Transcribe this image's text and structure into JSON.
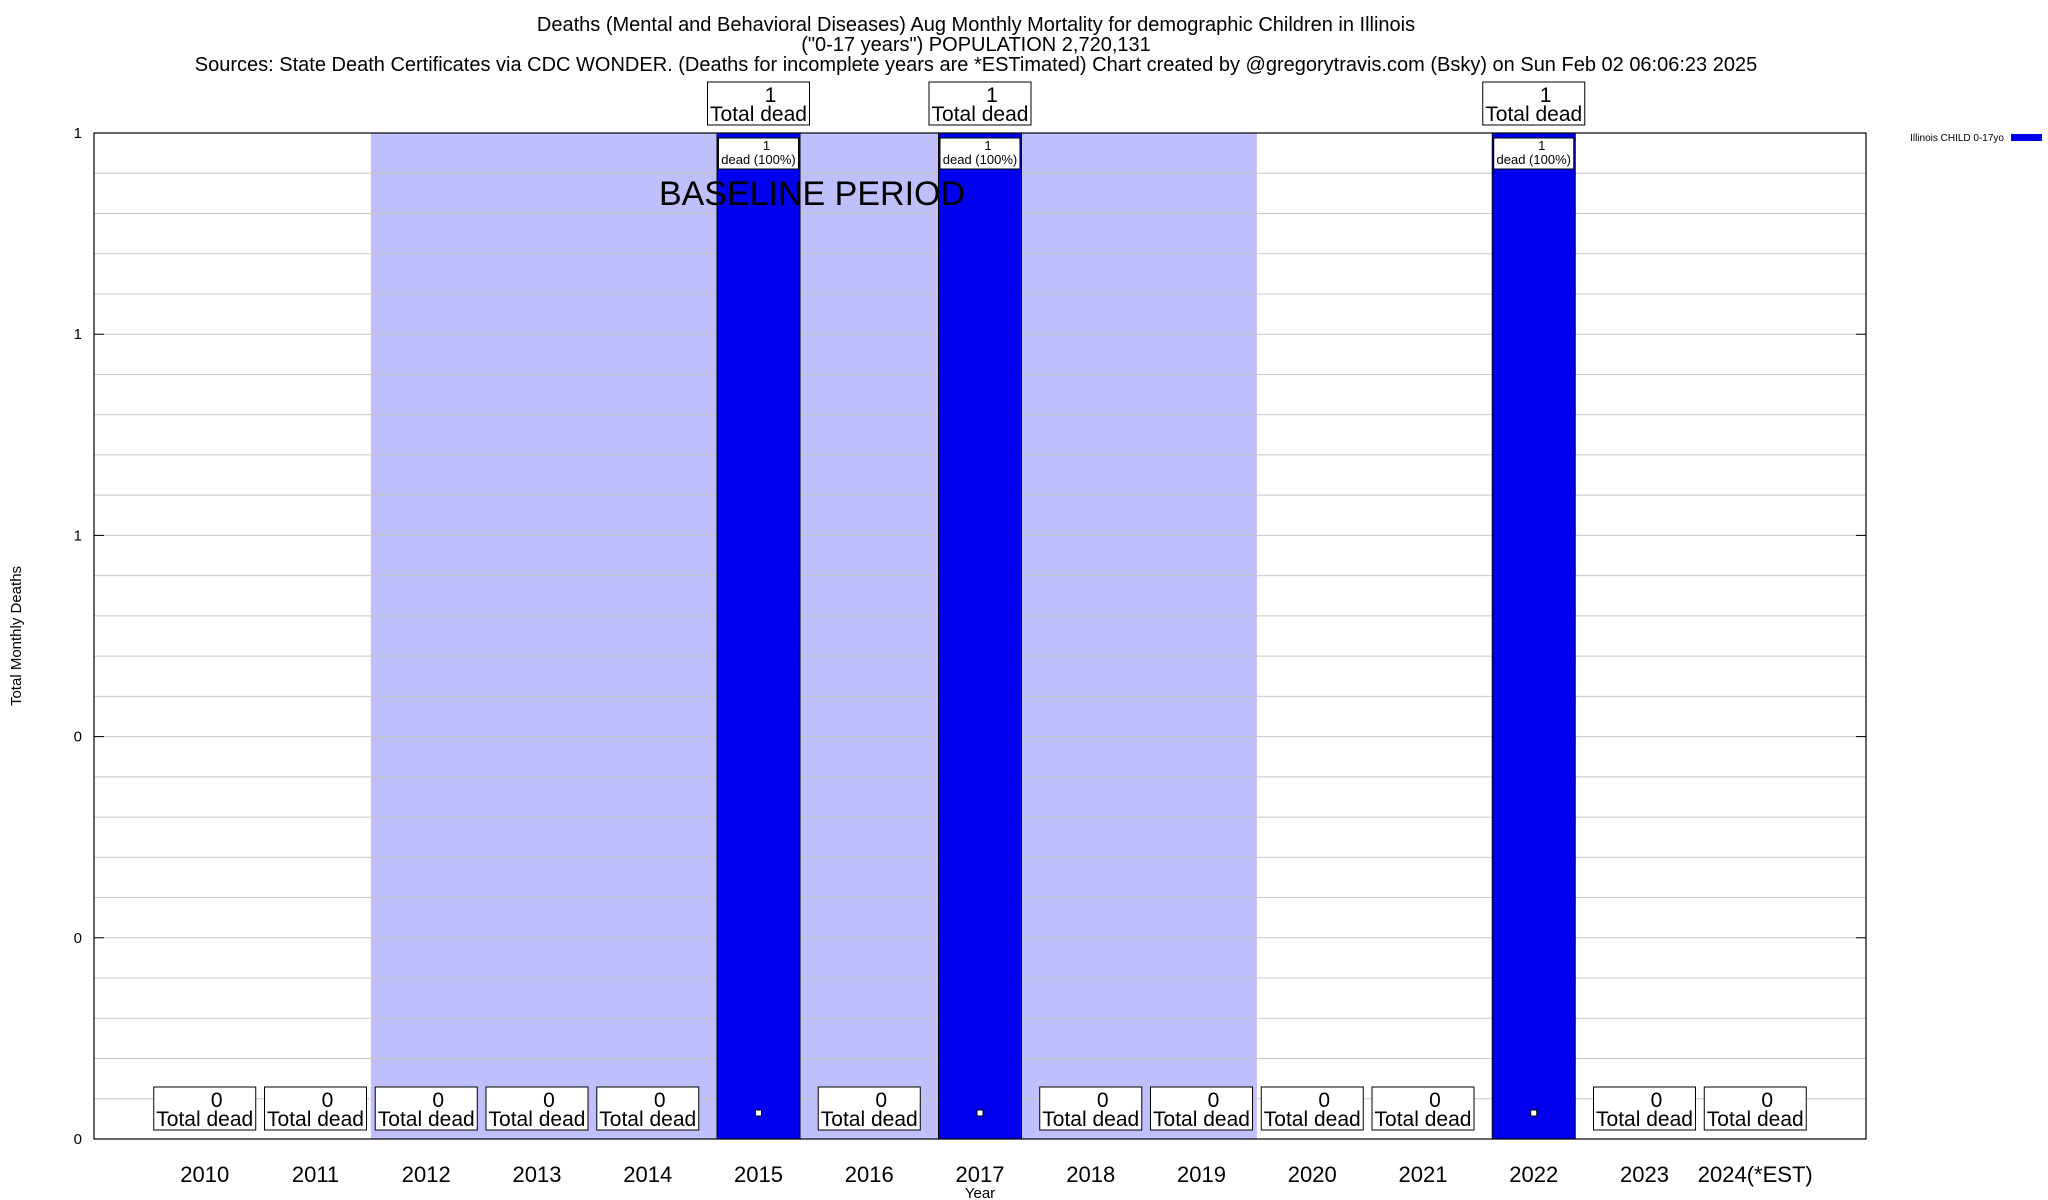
{
  "chart_data": {
    "type": "bar",
    "title_lines": [
      "Deaths (Mental and Behavioral Diseases) Aug Monthly Mortality for demographic Children in Illinois",
      "(\"0-17 years\") POPULATION 2,720,131",
      "Sources: State Death Certificates via CDC WONDER. (Deaths for incomplete years are *ESTimated)              Chart created by @gregorytravis.com (Bsky) on Sun Feb 02 06:06:23 2025"
    ],
    "xlabel": "Year",
    "ylabel": "Total Monthly Deaths",
    "categories": [
      "2010",
      "2011",
      "2012",
      "2013",
      "2014",
      "2015",
      "2016",
      "2017",
      "2018",
      "2019",
      "2020",
      "2021",
      "2022",
      "2023",
      "2024(*EST)"
    ],
    "series": [
      {
        "name": "Illinois CHILD 0-17yo",
        "color": "#0000ee",
        "values": [
          0,
          0,
          0,
          0,
          0,
          1,
          0,
          1,
          0,
          0,
          0,
          0,
          1,
          0,
          0
        ]
      }
    ],
    "total_label_text": "Total dead",
    "bar_label_suffix": "dead (100%)",
    "ylim": [
      0,
      1
    ],
    "y_tick_labels": [
      "0",
      "0",
      "0",
      "1",
      "1",
      "1"
    ],
    "baseline_period": {
      "label": "BASELINE PERIOD",
      "from": "2012",
      "to": "2019",
      "color": "#bfbffb"
    },
    "grid": true,
    "legend_position": "top-right"
  }
}
